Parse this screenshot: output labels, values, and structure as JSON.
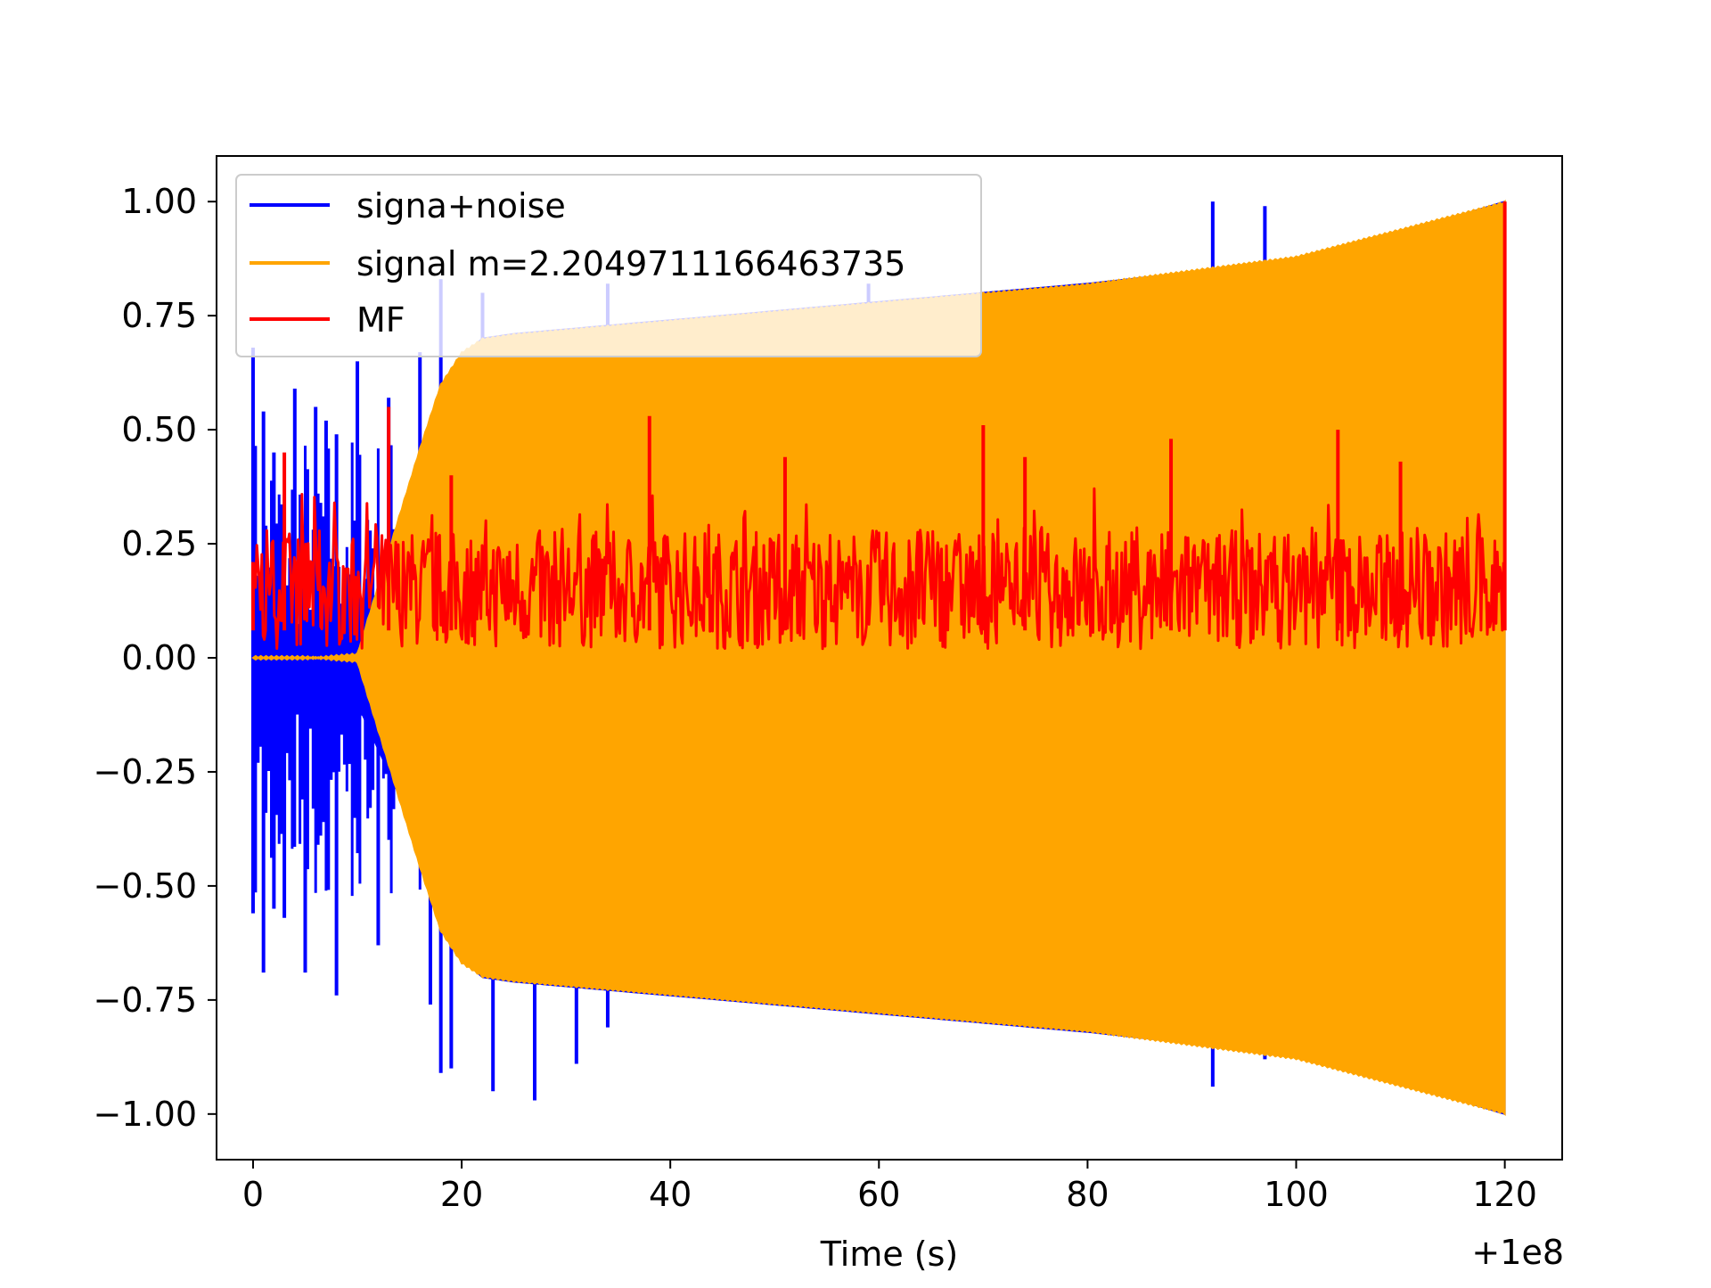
{
  "chart_data": {
    "type": "line",
    "title": "",
    "xlabel": "Time (s)",
    "ylabel": "",
    "x_offset_label": "+1e8",
    "xlim": [
      -3.5,
      125.5
    ],
    "ylim": [
      -1.1,
      1.1
    ],
    "x_ticks": [
      0,
      20,
      40,
      60,
      80,
      100,
      120
    ],
    "x_tick_labels": [
      "0",
      "20",
      "40",
      "60",
      "80",
      "100",
      "120"
    ],
    "y_ticks": [
      1.0,
      0.75,
      0.5,
      0.25,
      0.0,
      -0.25,
      -0.5,
      -0.75,
      -1.0
    ],
    "y_tick_labels": [
      "1.00",
      "0.75",
      "0.50",
      "0.25",
      "0.00",
      "−0.25",
      "−0.50",
      "−0.75",
      "−1.00"
    ],
    "grid": false,
    "legend_position": "upper-left",
    "series": [
      {
        "name": "signa+noise",
        "color": "#0000ff",
        "envelope_x": [
          0,
          5,
          10,
          14,
          16,
          18,
          20,
          22,
          25,
          30,
          40,
          60,
          80,
          100,
          110,
          120
        ],
        "envelope_upper": [
          0.0,
          0.0,
          0.0,
          0.3,
          0.45,
          0.58,
          0.66,
          0.7,
          0.71,
          0.72,
          0.74,
          0.78,
          0.82,
          0.87,
          0.93,
          1.0
        ],
        "envelope_lower": [
          -0.01,
          -0.02,
          -0.1,
          -0.3,
          -0.45,
          -0.58,
          -0.66,
          -0.7,
          -0.71,
          -0.72,
          -0.74,
          -0.78,
          -0.82,
          -0.87,
          -0.93,
          -1.0
        ],
        "spikes": [
          {
            "x": 0,
            "y": 0.68
          },
          {
            "x": 0,
            "y": -0.56
          },
          {
            "x": 1,
            "y": 0.54
          },
          {
            "x": 1,
            "y": -0.69
          },
          {
            "x": 2,
            "y": 0.45
          },
          {
            "x": 2,
            "y": -0.55
          },
          {
            "x": 3,
            "y": -0.57
          },
          {
            "x": 4,
            "y": 0.59
          },
          {
            "x": 5,
            "y": -0.69
          },
          {
            "x": 6,
            "y": 0.55
          },
          {
            "x": 7,
            "y": 0.52
          },
          {
            "x": 8,
            "y": 0.49
          },
          {
            "x": 8,
            "y": -0.74
          },
          {
            "x": 10,
            "y": 0.65
          },
          {
            "x": 12,
            "y": -0.63
          },
          {
            "x": 13,
            "y": 0.57
          },
          {
            "x": 16,
            "y": 0.67
          },
          {
            "x": 17,
            "y": -0.76
          },
          {
            "x": 18,
            "y": 0.83
          },
          {
            "x": 18,
            "y": -0.91
          },
          {
            "x": 19,
            "y": -0.9
          },
          {
            "x": 22,
            "y": 0.8
          },
          {
            "x": 23,
            "y": -0.95
          },
          {
            "x": 27,
            "y": -0.97
          },
          {
            "x": 31,
            "y": -0.89
          },
          {
            "x": 34,
            "y": 0.82
          },
          {
            "x": 34,
            "y": -0.81
          },
          {
            "x": 59,
            "y": 0.82
          },
          {
            "x": 92,
            "y": 1.0
          },
          {
            "x": 92,
            "y": -0.94
          },
          {
            "x": 97,
            "y": 0.99
          },
          {
            "x": 97,
            "y": -0.88
          }
        ]
      },
      {
        "name": "signal m=2.2049711166463735",
        "color": "#ffa500",
        "envelope_x": [
          0,
          5,
          10,
          14,
          16,
          18,
          20,
          22,
          25,
          30,
          40,
          60,
          80,
          100,
          110,
          120
        ],
        "envelope_upper": [
          0.0,
          0.0,
          0.01,
          0.31,
          0.46,
          0.6,
          0.67,
          0.7,
          0.71,
          0.72,
          0.74,
          0.78,
          0.82,
          0.88,
          0.94,
          1.0
        ],
        "envelope_lower": [
          0.0,
          0.0,
          -0.01,
          -0.31,
          -0.46,
          -0.6,
          -0.67,
          -0.7,
          -0.71,
          -0.72,
          -0.74,
          -0.78,
          -0.82,
          -0.88,
          -0.94,
          -1.0
        ]
      },
      {
        "name": "MF",
        "color": "#ff0000",
        "baseline": 0.15,
        "band": [
          0.02,
          0.28
        ],
        "peaks": [
          {
            "x": 0,
            "y": 0.21
          },
          {
            "x": 3,
            "y": 0.45
          },
          {
            "x": 13,
            "y": 0.55
          },
          {
            "x": 19,
            "y": 0.4
          },
          {
            "x": 38,
            "y": 0.53
          },
          {
            "x": 51,
            "y": 0.44
          },
          {
            "x": 70,
            "y": 0.51
          },
          {
            "x": 74,
            "y": 0.44
          },
          {
            "x": 88,
            "y": 0.48
          },
          {
            "x": 104,
            "y": 0.5
          },
          {
            "x": 110,
            "y": 0.43
          },
          {
            "x": 120,
            "y": 1.0
          }
        ]
      }
    ]
  }
}
